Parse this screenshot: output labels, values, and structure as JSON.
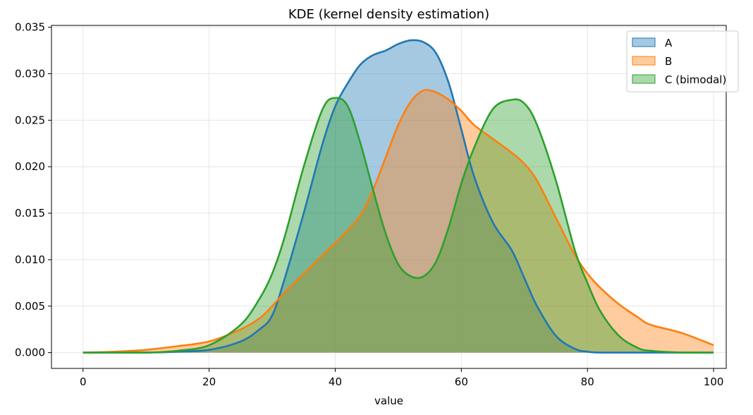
{
  "chart_data": {
    "type": "area",
    "title": "KDE (kernel density estimation)",
    "xlabel": "value",
    "ylabel": "",
    "xlim": [
      -5,
      102
    ],
    "ylim": [
      -0.0017,
      0.0352
    ],
    "xticks": [
      0,
      20,
      40,
      60,
      80,
      100
    ],
    "xtick_labels": [
      "0",
      "20",
      "40",
      "60",
      "80",
      "100"
    ],
    "yticks": [
      0.0,
      0.005,
      0.01,
      0.015,
      0.02,
      0.025,
      0.03,
      0.035
    ],
    "ytick_labels": [
      "0.000",
      "0.005",
      "0.010",
      "0.015",
      "0.020",
      "0.025",
      "0.030",
      "0.035"
    ],
    "grid": true,
    "legend_position": "top-right",
    "x": [
      0,
      5,
      10,
      15,
      20,
      25,
      28,
      30,
      32,
      35,
      38,
      40,
      42,
      44,
      46,
      48,
      50,
      52,
      54,
      56,
      58,
      60,
      62,
      65,
      68,
      70,
      72,
      75,
      78,
      80,
      82,
      85,
      88,
      90,
      95,
      100
    ],
    "series": [
      {
        "name": "A",
        "color": "#1f77b4",
        "values": [
          0.0,
          0.0,
          0.0,
          0.0001,
          0.0003,
          0.0012,
          0.0025,
          0.004,
          0.008,
          0.015,
          0.0225,
          0.0265,
          0.029,
          0.031,
          0.032,
          0.0325,
          0.0332,
          0.0336,
          0.0334,
          0.0322,
          0.029,
          0.024,
          0.019,
          0.014,
          0.011,
          0.008,
          0.005,
          0.0018,
          0.0004,
          0.0001,
          0.0,
          0.0,
          0.0,
          0.0,
          0.0,
          0.0
        ]
      },
      {
        "name": "B",
        "color": "#ff7f0e",
        "values": [
          0.0,
          0.0001,
          0.0003,
          0.0007,
          0.0012,
          0.0025,
          0.0037,
          0.005,
          0.0065,
          0.0085,
          0.0105,
          0.0118,
          0.0132,
          0.0148,
          0.0175,
          0.021,
          0.0245,
          0.027,
          0.0282,
          0.028,
          0.0272,
          0.026,
          0.0245,
          0.023,
          0.0215,
          0.0203,
          0.0185,
          0.0145,
          0.0105,
          0.0085,
          0.007,
          0.0052,
          0.0038,
          0.003,
          0.0021,
          0.0008
        ]
      },
      {
        "name": "C (bimodal)",
        "color": "#2ca02c",
        "values": [
          0.0,
          0.0,
          0.0,
          0.0002,
          0.0008,
          0.003,
          0.0058,
          0.0085,
          0.0125,
          0.02,
          0.0262,
          0.0274,
          0.0265,
          0.0225,
          0.0175,
          0.0128,
          0.0095,
          0.0082,
          0.0082,
          0.0098,
          0.0135,
          0.0182,
          0.022,
          0.0262,
          0.0272,
          0.0268,
          0.0245,
          0.0185,
          0.011,
          0.0075,
          0.0045,
          0.0018,
          0.0005,
          0.0002,
          0.0,
          0.0
        ]
      }
    ]
  }
}
